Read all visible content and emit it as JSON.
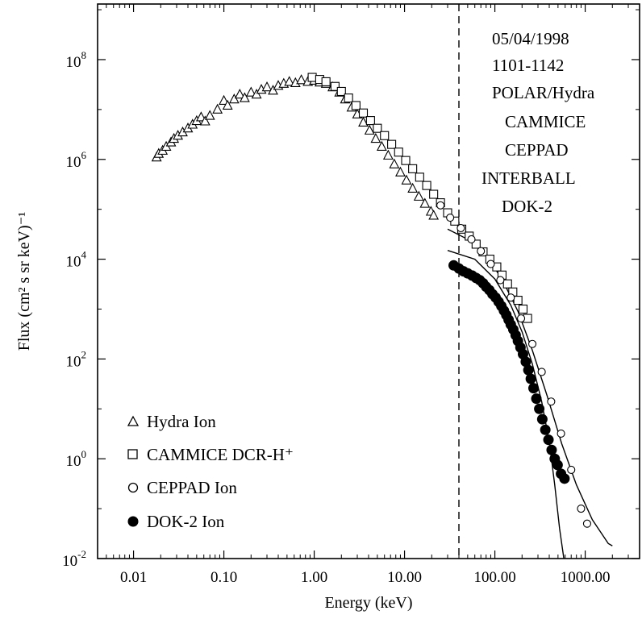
{
  "chart_data": {
    "type": "scatter",
    "x_scale": "log",
    "y_scale": "log",
    "xlabel": "Energy (keV)",
    "ylabel": "Flux (cm² s sr keV)⁻¹",
    "xlim": [
      0.004,
      4000
    ],
    "ylim": [
      0.01,
      1300000000.0
    ],
    "x_ticks": [
      {
        "value": 0.01,
        "label": "0.01"
      },
      {
        "value": 0.1,
        "label": "0.10"
      },
      {
        "value": 1,
        "label": "1.00"
      },
      {
        "value": 10,
        "label": "10.00"
      },
      {
        "value": 100,
        "label": "100.00"
      },
      {
        "value": 1000,
        "label": "1000.00"
      }
    ],
    "y_ticks": [
      {
        "value": 100000000.0,
        "base": "10",
        "exp": "8"
      },
      {
        "value": 1000000.0,
        "base": "10",
        "exp": "6"
      },
      {
        "value": 10000.0,
        "base": "10",
        "exp": "4"
      },
      {
        "value": 100.0,
        "base": "10",
        "exp": "2"
      },
      {
        "value": 1,
        "base": "10",
        "exp": "0"
      },
      {
        "value": 0.01,
        "base": "10",
        "exp": "-2"
      }
    ],
    "annotations": [
      "05/04/1998",
      "1101-1142",
      "POLAR/Hydra",
      "CAMMICE",
      "CEPPAD",
      "INTERBALL",
      "DOK-2"
    ],
    "vline": {
      "x": 40,
      "style": "dashed"
    },
    "legend": {
      "placement": "bottom-left"
    },
    "series": [
      {
        "name": "Hydra Ion",
        "marker": "triangle-open",
        "points": [
          [
            0.018,
            1100000.0
          ],
          [
            0.019,
            1300000.0
          ],
          [
            0.021,
            1500000.0
          ],
          [
            0.023,
            1800000.0
          ],
          [
            0.026,
            2200000.0
          ],
          [
            0.028,
            2600000.0
          ],
          [
            0.031,
            3000000.0
          ],
          [
            0.035,
            3500000.0
          ],
          [
            0.04,
            4200000.0
          ],
          [
            0.045,
            5000000.0
          ],
          [
            0.05,
            5900000.0
          ],
          [
            0.056,
            7000000.0
          ],
          [
            0.062,
            5800000.0
          ],
          [
            0.07,
            7500000.0
          ],
          [
            0.085,
            10000000.0
          ],
          [
            0.1,
            15000000.0
          ],
          [
            0.11,
            12000000.0
          ],
          [
            0.13,
            16000000.0
          ],
          [
            0.15,
            20000000.0
          ],
          [
            0.17,
            17000000.0
          ],
          [
            0.2,
            22000000.0
          ],
          [
            0.23,
            20000000.0
          ],
          [
            0.26,
            25000000.0
          ],
          [
            0.3,
            28000000.0
          ],
          [
            0.35,
            24000000.0
          ],
          [
            0.4,
            30000000.0
          ],
          [
            0.46,
            33000000.0
          ],
          [
            0.53,
            36000000.0
          ],
          [
            0.62,
            34000000.0
          ],
          [
            0.72,
            39000000.0
          ],
          [
            0.85,
            36000000.0
          ],
          [
            1.0,
            38000000.0
          ],
          [
            1.15,
            35000000.0
          ],
          [
            1.35,
            33000000.0
          ],
          [
            1.6,
            28000000.0
          ],
          [
            1.9,
            22000000.0
          ],
          [
            2.2,
            16000000.0
          ],
          [
            2.6,
            11000000.0
          ],
          [
            3.0,
            8000000.0
          ],
          [
            3.5,
            5500000.0
          ],
          [
            4.1,
            3800000.0
          ],
          [
            4.8,
            2600000.0
          ],
          [
            5.6,
            1800000.0
          ],
          [
            6.6,
            1200000.0
          ],
          [
            7.7,
            800000.0
          ],
          [
            9.0,
            550000.0
          ],
          [
            10.5,
            380000.0
          ],
          [
            12.3,
            260000.0
          ],
          [
            14.4,
            180000.0
          ],
          [
            16.8,
            130000.0
          ],
          [
            19.6,
            90000.0
          ],
          [
            21.0,
            75000.0
          ]
        ]
      },
      {
        "name": "CAMMICE DCR-H⁺",
        "marker": "square-open",
        "points": [
          [
            0.95,
            44000000.0
          ],
          [
            1.15,
            40000000.0
          ],
          [
            1.35,
            36000000.0
          ],
          [
            1.7,
            29000000.0
          ],
          [
            2.0,
            23000000.0
          ],
          [
            2.4,
            17000000.0
          ],
          [
            2.9,
            12000000.0
          ],
          [
            3.5,
            8500000.0
          ],
          [
            4.2,
            6000000.0
          ],
          [
            5.0,
            4200000.0
          ],
          [
            6.0,
            3000000.0
          ],
          [
            7.2,
            2000000.0
          ],
          [
            8.6,
            1400000.0
          ],
          [
            10.3,
            950000.0
          ],
          [
            12.3,
            650000.0
          ],
          [
            14.7,
            440000.0
          ],
          [
            17.6,
            300000.0
          ],
          [
            21.0,
            200000.0
          ],
          [
            25.0,
            135000.0
          ],
          [
            30.0,
            85000.0
          ],
          [
            36.0,
            58000.0
          ],
          [
            43.0,
            40000.0
          ],
          [
            52.0,
            29000.0
          ],
          [
            62.0,
            20000.0
          ],
          [
            74.0,
            14000.0
          ],
          [
            88.0,
            10000.0
          ],
          [
            105.0,
            7000.0
          ],
          [
            120.0,
            4800.0
          ],
          [
            138.0,
            3200.0
          ],
          [
            158.0,
            2200.0
          ],
          [
            180.0,
            1500.0
          ],
          [
            205.0,
            1000.0
          ],
          [
            230.0,
            650.0
          ]
        ]
      },
      {
        "name": "CEPPAD Ion",
        "marker": "circle-open",
        "points": [
          [
            25.0,
            120000.0
          ],
          [
            32.0,
            68000.0
          ],
          [
            42.0,
            42000.0
          ],
          [
            55.0,
            25000.0
          ],
          [
            70.0,
            14500.0
          ],
          [
            90.0,
            8000.0
          ],
          [
            115.0,
            3800.0
          ],
          [
            150.0,
            1700.0
          ],
          [
            195.0,
            650.0
          ],
          [
            260.0,
            200.0
          ],
          [
            330.0,
            55.0
          ],
          [
            420.0,
            14.0
          ],
          [
            540.0,
            3.2
          ],
          [
            700.0,
            0.6
          ],
          [
            900.0,
            0.1
          ],
          [
            1050.0,
            0.05
          ]
        ]
      },
      {
        "name": "DOK-2 Ion",
        "marker": "circle-filled",
        "points": [
          [
            35.0,
            7500.0
          ],
          [
            40.0,
            6500.0
          ],
          [
            45.0,
            5700.0
          ],
          [
            50.0,
            5200.0
          ],
          [
            56.0,
            4700.0
          ],
          [
            62.0,
            4200.0
          ],
          [
            68.0,
            3800.0
          ],
          [
            74.0,
            3300.0
          ],
          [
            80.0,
            2800.0
          ],
          [
            87.0,
            2400.0
          ],
          [
            94.0,
            2000.0
          ],
          [
            102.0,
            1700.0
          ],
          [
            110.0,
            1400.0
          ],
          [
            118.0,
            1150.0
          ],
          [
            126.0,
            930.0
          ],
          [
            134.0,
            760.0
          ],
          [
            142.0,
            610.0
          ],
          [
            150.0,
            490.0
          ],
          [
            160.0,
            390.0
          ],
          [
            170.0,
            300.0
          ],
          [
            180.0,
            230.0
          ],
          [
            192.0,
            170.0
          ],
          [
            205.0,
            125.0
          ],
          [
            220.0,
            88.0
          ],
          [
            235.0,
            60.0
          ],
          [
            250.0,
            40.0
          ],
          [
            268.0,
            26.0
          ],
          [
            288.0,
            16.0
          ],
          [
            310.0,
            10.0
          ],
          [
            335.0,
            6.2
          ],
          [
            362.0,
            3.8
          ],
          [
            392.0,
            2.4
          ],
          [
            425.0,
            1.5
          ],
          [
            460.0,
            1.0
          ],
          [
            495.0,
            0.75
          ],
          [
            540.0,
            0.5
          ],
          [
            590.0,
            0.4
          ]
        ]
      }
    ],
    "fits": [
      {
        "name": "fit-1",
        "points": [
          [
            30,
            15000.0
          ],
          [
            60,
            10000.0
          ],
          [
            100,
            4000.0
          ],
          [
            150,
            1200.0
          ],
          [
            200,
            350.0
          ],
          [
            260,
            80.0
          ],
          [
            330,
            14.0
          ],
          [
            400,
            2.2
          ],
          [
            460,
            0.3
          ],
          [
            520,
            0.04
          ],
          [
            580,
            0.01
          ]
        ]
      },
      {
        "name": "fit-2",
        "points": [
          [
            30,
            40000.0
          ],
          [
            50,
            25000.0
          ],
          [
            80,
            12000.0
          ],
          [
            120,
            4000.0
          ],
          [
            180,
            900.0
          ],
          [
            260,
            150.0
          ],
          [
            380,
            18.0
          ],
          [
            550,
            2.0
          ],
          [
            800,
            0.3
          ],
          [
            1200,
            0.06
          ],
          [
            1800,
            0.02
          ],
          [
            2000,
            0.018
          ]
        ]
      }
    ]
  }
}
